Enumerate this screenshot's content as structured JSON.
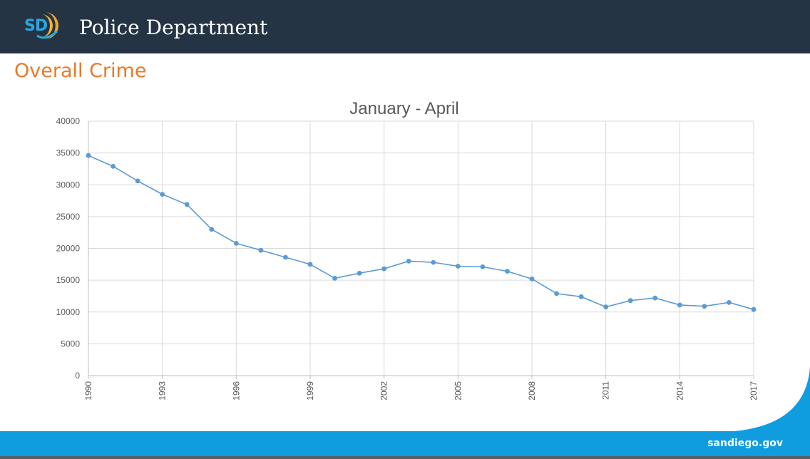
{
  "header": {
    "logo_text": "SD",
    "title": "Police Department"
  },
  "section": {
    "title": "Overall Crime"
  },
  "footer": {
    "site": "sandiego.gov"
  },
  "colors": {
    "header_bg": "#253445",
    "accent_orange": "#e8792b",
    "footer_blue": "#0f9de0",
    "series_line": "#5b9bd5"
  },
  "chart_data": {
    "type": "line",
    "title": "January - April",
    "xlabel": "",
    "ylabel": "",
    "x": [
      1990,
      1991,
      1992,
      1993,
      1994,
      1995,
      1996,
      1997,
      1998,
      1999,
      2000,
      2001,
      2002,
      2003,
      2004,
      2005,
      2006,
      2007,
      2008,
      2009,
      2010,
      2011,
      2012,
      2013,
      2014,
      2015,
      2016,
      2017
    ],
    "x_tick_labels": [
      "1990",
      "1993",
      "1996",
      "1999",
      "2002",
      "2005",
      "2008",
      "2011",
      "2014",
      "2017"
    ],
    "y_tick_labels": [
      "0",
      "5000",
      "10000",
      "15000",
      "20000",
      "25000",
      "30000",
      "35000",
      "40000"
    ],
    "ylim": [
      0,
      40000
    ],
    "grid": true,
    "legend": "none",
    "series": [
      {
        "values": [
          34600,
          32900,
          30600,
          28500,
          26900,
          23000,
          20800,
          19700,
          18600,
          17500,
          15300,
          16100,
          16800,
          18000,
          17800,
          17200,
          17100,
          16400,
          15200,
          12900,
          12400,
          10800,
          11800,
          12200,
          11100,
          10900,
          11500,
          10400
        ]
      }
    ]
  }
}
